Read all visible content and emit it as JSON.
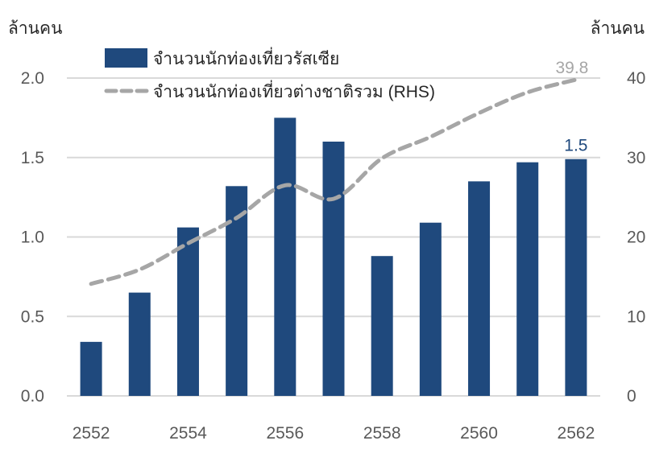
{
  "chart_data": {
    "type": "bar+line",
    "left_axis_label": "ล้านคน",
    "right_axis_label": "ล้านคน",
    "categories": [
      "2552",
      "2553",
      "2554",
      "2555",
      "2556",
      "2557",
      "2558",
      "2559",
      "2560",
      "2561",
      "2562"
    ],
    "x_tick_labels": [
      "2552",
      "2554",
      "2556",
      "2558",
      "2560",
      "2562"
    ],
    "left_ylim": [
      0,
      2.0
    ],
    "left_ticks": [
      "0.0",
      "0.5",
      "1.0",
      "1.5",
      "2.0"
    ],
    "right_ylim": [
      0,
      40
    ],
    "right_ticks": [
      "0",
      "10",
      "20",
      "30",
      "40"
    ],
    "grid": true,
    "legend_placement": "top",
    "series": [
      {
        "name": "จำนวนนักท่องเที่ยวรัสเซีย",
        "type": "bar",
        "axis": "left",
        "color": "#1F497D",
        "values": [
          0.34,
          0.65,
          1.06,
          1.32,
          1.75,
          1.6,
          0.88,
          1.09,
          1.35,
          1.47,
          1.49
        ],
        "last_label": "1.5"
      },
      {
        "name": "จำนวนนักท่องเที่ยวต่างชาติรวม (RHS)",
        "type": "line",
        "style": "dashed",
        "axis": "right",
        "color": "#A6A6A6",
        "values": [
          14.1,
          15.9,
          19.2,
          22.4,
          26.5,
          24.8,
          29.9,
          32.6,
          35.6,
          38.2,
          39.8
        ],
        "last_label": "39.8"
      }
    ]
  }
}
